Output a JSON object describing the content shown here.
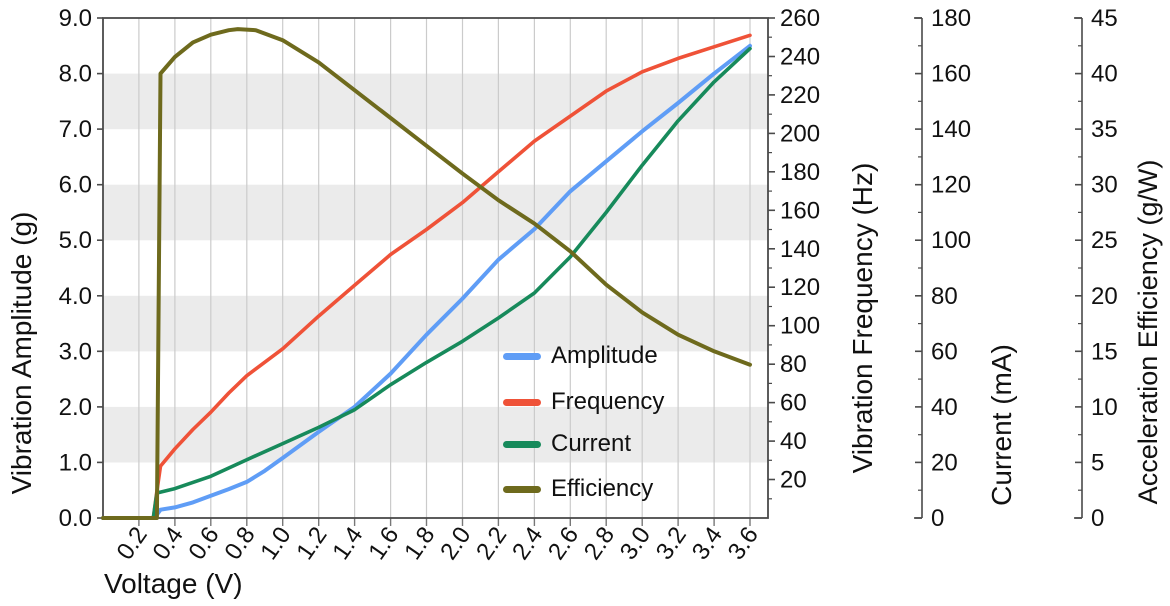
{
  "figure": {
    "background": "#ffffff"
  },
  "chart_data": {
    "type": "line",
    "title": "",
    "xlabel": "Voltage (V)",
    "x_axis": {
      "min": 0,
      "max": 3.7,
      "tick_step": 0.2,
      "tick_labels": [
        "0.2",
        "0.4",
        "0.6",
        "0.8",
        "1.0",
        "1.2",
        "1.4",
        "1.6",
        "1.8",
        "2.0",
        "2.2",
        "2.4",
        "2.6",
        "2.8",
        "3.0",
        "3.2",
        "3.4",
        "3.6"
      ],
      "tick_label_rotation_deg": -55
    },
    "axes": {
      "amplitude": {
        "title": "Vibration Amplitude (g)",
        "side": "left",
        "min": 0,
        "max": 9,
        "tick_step": 1,
        "tick_labels": [
          "0.0",
          "1.0",
          "2.0",
          "3.0",
          "4.0",
          "5.0",
          "6.0",
          "7.0",
          "8.0",
          "9.0"
        ]
      },
      "frequency": {
        "title": "Vibration Frequency (Hz)",
        "side": "right-attached",
        "min": 0,
        "max": 260,
        "tick_step": 20,
        "minor_step": 10,
        "tick_labels": [
          "20",
          "40",
          "60",
          "80",
          "100",
          "120",
          "140",
          "160",
          "180",
          "200",
          "220",
          "240",
          "260"
        ]
      },
      "current": {
        "title": "Current (mA)",
        "side": "right-floating-1",
        "min": 0,
        "max": 180,
        "tick_step": 20,
        "minor_step": 10,
        "tick_labels": [
          "0",
          "20",
          "40",
          "60",
          "80",
          "100",
          "120",
          "140",
          "160",
          "180"
        ]
      },
      "efficiency": {
        "title": "Acceleration Efficiency (g/W)",
        "side": "right-floating-2",
        "min": 0,
        "max": 45,
        "tick_step": 5,
        "minor_step": 2.5,
        "tick_labels": [
          "0",
          "5",
          "10",
          "15",
          "20",
          "25",
          "30",
          "35",
          "40",
          "45"
        ]
      }
    },
    "grid": {
      "vertical_gridlines": true,
      "gridline_color": "#cbcbcb",
      "bands": [
        [
          1,
          2
        ],
        [
          3,
          4
        ],
        [
          5,
          6
        ],
        [
          7,
          8
        ]
      ],
      "band_color": "#ebebeb",
      "frame_color": "#4a4a4a"
    },
    "legend": {
      "position": "inside-center-right",
      "entries": [
        "Amplitude",
        "Frequency",
        "Current",
        "Efficiency"
      ]
    },
    "series": [
      {
        "name": "Amplitude",
        "axis": "amplitude",
        "color": "#5f9df6",
        "width": 4,
        "points": [
          [
            0,
            0
          ],
          [
            0.28,
            0
          ],
          [
            0.3,
            0.06
          ],
          [
            0.32,
            0.15
          ],
          [
            0.4,
            0.19
          ],
          [
            0.5,
            0.28
          ],
          [
            0.6,
            0.4
          ],
          [
            0.7,
            0.52
          ],
          [
            0.8,
            0.65
          ],
          [
            0.9,
            0.85
          ],
          [
            1.0,
            1.08
          ],
          [
            1.2,
            1.55
          ],
          [
            1.4,
            2.0
          ],
          [
            1.6,
            2.6
          ],
          [
            1.8,
            3.3
          ],
          [
            2.0,
            3.95
          ],
          [
            2.2,
            4.65
          ],
          [
            2.4,
            5.2
          ],
          [
            2.6,
            5.88
          ],
          [
            2.8,
            6.42
          ],
          [
            3.0,
            6.96
          ],
          [
            3.2,
            7.47
          ],
          [
            3.4,
            8.0
          ],
          [
            3.6,
            8.5
          ]
        ]
      },
      {
        "name": "Frequency",
        "axis": "frequency",
        "color": "#ef5238",
        "width": 3.6,
        "points": [
          [
            0,
            0
          ],
          [
            0.28,
            0
          ],
          [
            0.3,
            14
          ],
          [
            0.32,
            27
          ],
          [
            0.4,
            36
          ],
          [
            0.5,
            46
          ],
          [
            0.6,
            55
          ],
          [
            0.7,
            65
          ],
          [
            0.8,
            74
          ],
          [
            0.9,
            81
          ],
          [
            1.0,
            88
          ],
          [
            1.2,
            105
          ],
          [
            1.4,
            121
          ],
          [
            1.6,
            137
          ],
          [
            1.8,
            150
          ],
          [
            2.0,
            164
          ],
          [
            2.2,
            180
          ],
          [
            2.4,
            196
          ],
          [
            2.6,
            209
          ],
          [
            2.8,
            222
          ],
          [
            3.0,
            232
          ],
          [
            3.2,
            239
          ],
          [
            3.4,
            245
          ],
          [
            3.6,
            251
          ]
        ]
      },
      {
        "name": "Current",
        "axis": "current",
        "color": "#178a5b",
        "width": 3.6,
        "points": [
          [
            0,
            0
          ],
          [
            0.28,
            0
          ],
          [
            0.3,
            9
          ],
          [
            0.4,
            10.6
          ],
          [
            0.6,
            15
          ],
          [
            0.8,
            21
          ],
          [
            1.0,
            26.8
          ],
          [
            1.2,
            32.6
          ],
          [
            1.4,
            39
          ],
          [
            1.6,
            48
          ],
          [
            1.8,
            56
          ],
          [
            2.0,
            63.6
          ],
          [
            2.2,
            72
          ],
          [
            2.4,
            81
          ],
          [
            2.6,
            94
          ],
          [
            2.8,
            110
          ],
          [
            3.0,
            127
          ],
          [
            3.2,
            143
          ],
          [
            3.4,
            157
          ],
          [
            3.6,
            169
          ]
        ]
      },
      {
        "name": "Efficiency",
        "axis": "efficiency",
        "color": "#6e6a1d",
        "width": 4,
        "points": [
          [
            0,
            0
          ],
          [
            0.3,
            0
          ],
          [
            0.32,
            40
          ],
          [
            0.4,
            41.5
          ],
          [
            0.5,
            42.8
          ],
          [
            0.6,
            43.5
          ],
          [
            0.7,
            43.9
          ],
          [
            0.75,
            44.0
          ],
          [
            0.85,
            43.9
          ],
          [
            1.0,
            43.0
          ],
          [
            1.2,
            41.0
          ],
          [
            1.4,
            38.5
          ],
          [
            1.6,
            36.0
          ],
          [
            1.8,
            33.5
          ],
          [
            2.0,
            31.0
          ],
          [
            2.2,
            28.6
          ],
          [
            2.4,
            26.5
          ],
          [
            2.6,
            24.0
          ],
          [
            2.8,
            21.0
          ],
          [
            3.0,
            18.5
          ],
          [
            3.2,
            16.5
          ],
          [
            3.4,
            15.0
          ],
          [
            3.6,
            13.8
          ]
        ]
      }
    ]
  }
}
